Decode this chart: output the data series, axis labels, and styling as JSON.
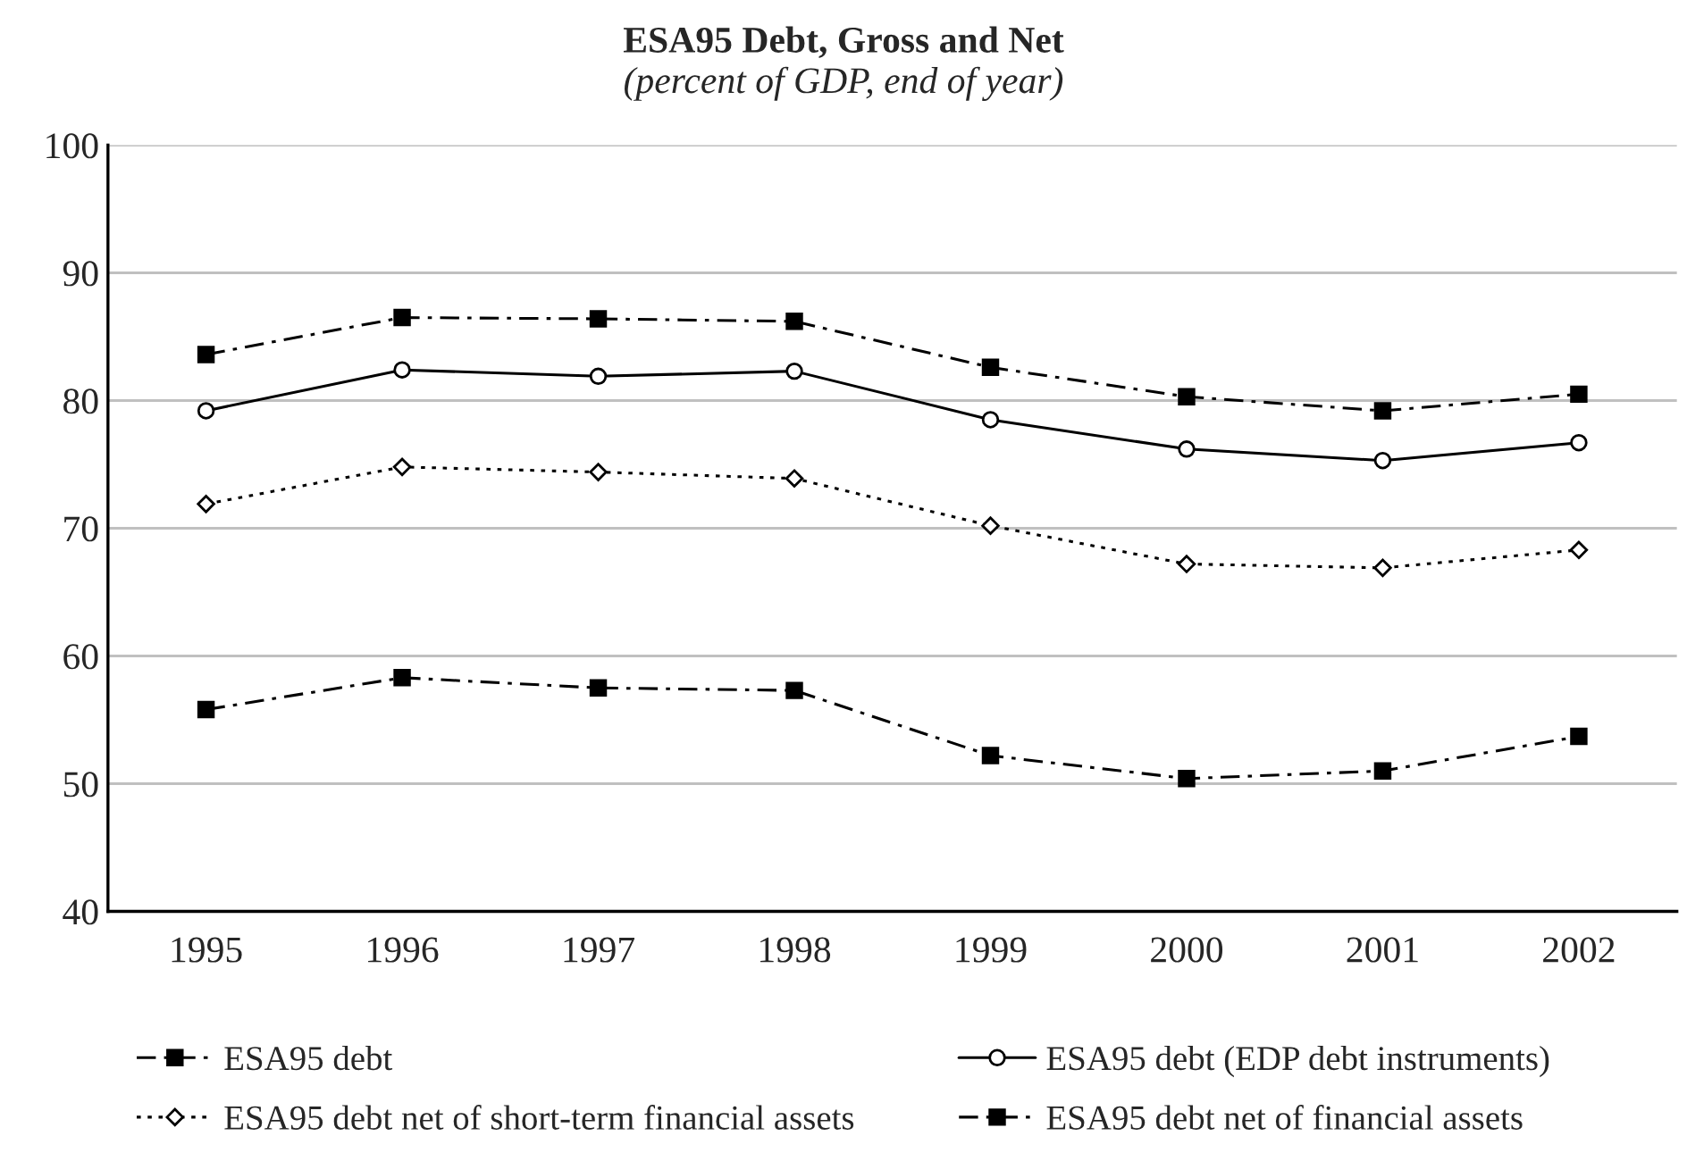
{
  "chart_data": {
    "type": "line",
    "title": "ESA95 Debt, Gross and Net",
    "subtitle": "(percent of GDP, end of year)",
    "categories": [
      "1995",
      "1996",
      "1997",
      "1998",
      "1999",
      "2000",
      "2001",
      "2002"
    ],
    "series": [
      {
        "name": "ESA95 debt",
        "color": "#000000",
        "marker": "square",
        "line_style": "dashed",
        "values": [
          83.6,
          86.5,
          86.4,
          86.2,
          82.6,
          80.3,
          79.2,
          80.5
        ]
      },
      {
        "name": "ESA95 debt (EDP debt instruments)",
        "color": "#000000",
        "marker": "circle",
        "line_style": "solid",
        "values": [
          79.2,
          82.4,
          81.9,
          82.3,
          78.5,
          76.2,
          75.3,
          76.7
        ]
      },
      {
        "name": "ESA95 debt net of short-term financial assets",
        "color": "#000000",
        "marker": "diamond",
        "line_style": "dotted",
        "values": [
          71.9,
          74.8,
          74.4,
          73.9,
          70.2,
          67.2,
          66.9,
          68.3
        ]
      },
      {
        "name": "ESA95 debt net of financial assets",
        "color": "#000000",
        "marker": "square",
        "line_style": "dashed",
        "values": [
          55.8,
          58.3,
          57.5,
          57.3,
          52.2,
          50.4,
          51.0,
          53.7
        ]
      }
    ],
    "ylim": [
      40,
      100
    ],
    "yticks": [
      40,
      50,
      60,
      70,
      80,
      90,
      100
    ],
    "grid": "y",
    "legend": "bottom"
  }
}
